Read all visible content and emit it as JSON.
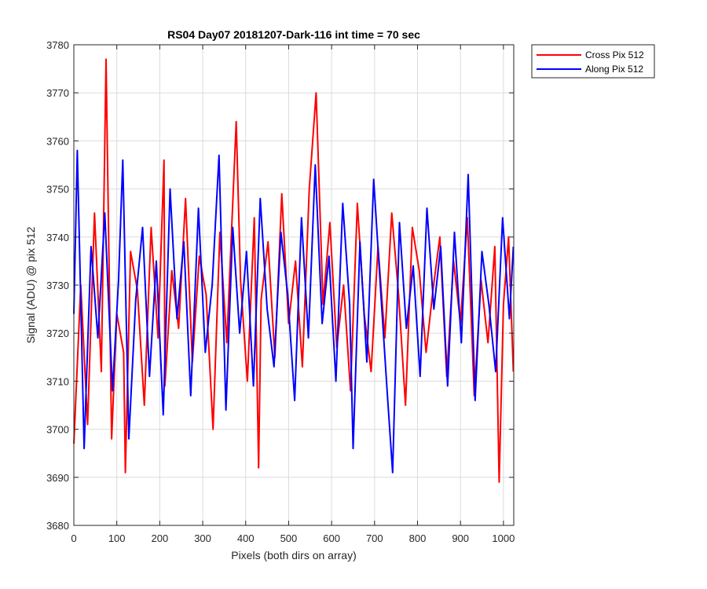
{
  "chart_data": {
    "type": "line",
    "title": "RS04 Day07 20181207-Dark-116 int time = 70 sec",
    "xlabel": "Pixels (both dirs on array)",
    "ylabel": "Signal (ADU) @ pix 512",
    "xlim": [
      0,
      1024
    ],
    "ylim": [
      3680,
      3780
    ],
    "xticks": [
      0,
      100,
      200,
      300,
      400,
      500,
      600,
      700,
      800,
      900,
      1000
    ],
    "yticks": [
      3680,
      3690,
      3700,
      3710,
      3720,
      3730,
      3740,
      3750,
      3760,
      3770,
      3780
    ],
    "grid": true,
    "legend_position": "outside top-right",
    "series": [
      {
        "name": "Cross Pix 512",
        "color": "#ff0000",
        "x": [
          0,
          16,
          32,
          48,
          64,
          75,
          88,
          100,
          116,
          120,
          132,
          148,
          164,
          180,
          196,
          210,
          212,
          228,
          244,
          260,
          276,
          292,
          308,
          324,
          340,
          356,
          378,
          388,
          404,
          420,
          430,
          436,
          452,
          468,
          484,
          500,
          516,
          532,
          548,
          564,
          580,
          596,
          612,
          628,
          644,
          660,
          676,
          692,
          708,
          724,
          740,
          756,
          772,
          788,
          804,
          820,
          836,
          852,
          868,
          884,
          900,
          916,
          932,
          948,
          964,
          980,
          990,
          1000,
          1012,
          1023
        ],
        "y": [
          3697,
          3730,
          3701,
          3745,
          3712,
          3777,
          3698,
          3724,
          3716,
          3691,
          3737,
          3729,
          3705,
          3742,
          3719,
          3756,
          3709,
          3733,
          3721,
          3748,
          3714,
          3736,
          3728,
          3700,
          3741,
          3718,
          3764,
          3731,
          3710,
          3744,
          3692,
          3727,
          3739,
          3715,
          3749,
          3722,
          3735,
          3713,
          3750,
          3770,
          3726,
          3743,
          3717,
          3730,
          3708,
          3747,
          3724,
          3712,
          3738,
          3719,
          3745,
          3728,
          3705,
          3742,
          3733,
          3716,
          3729,
          3740,
          3711,
          3735,
          3722,
          3744,
          3707,
          3731,
          3718,
          3738,
          3689,
          3726,
          3740,
          3712
        ]
      },
      {
        "name": "Along Pix 512",
        "color": "#0000ff",
        "x": [
          0,
          8,
          24,
          40,
          56,
          72,
          90,
          104,
          114,
          128,
          144,
          160,
          176,
          192,
          208,
          224,
          240,
          256,
          272,
          290,
          306,
          322,
          338,
          354,
          370,
          386,
          402,
          418,
          434,
          450,
          466,
          482,
          498,
          514,
          530,
          546,
          562,
          578,
          594,
          610,
          626,
          642,
          650,
          666,
          682,
          698,
          714,
          730,
          742,
          758,
          774,
          790,
          806,
          822,
          838,
          854,
          870,
          886,
          902,
          918,
          934,
          950,
          966,
          982,
          998,
          1014,
          1023
        ],
        "y": [
          3724,
          3758,
          3696,
          3738,
          3719,
          3745,
          3708,
          3731,
          3756,
          3698,
          3727,
          3742,
          3711,
          3735,
          3703,
          3750,
          3723,
          3739,
          3707,
          3746,
          3716,
          3730,
          3757,
          3704,
          3742,
          3720,
          3737,
          3709,
          3748,
          3725,
          3713,
          3741,
          3728,
          3706,
          3744,
          3719,
          3755,
          3722,
          3736,
          3710,
          3747,
          3726,
          3696,
          3739,
          3714,
          3752,
          3729,
          3707,
          3691,
          3743,
          3721,
          3734,
          3711,
          3746,
          3725,
          3738,
          3709,
          3741,
          3718,
          3753,
          3706,
          3737,
          3726,
          3712,
          3744,
          3723,
          3738
        ]
      }
    ]
  }
}
